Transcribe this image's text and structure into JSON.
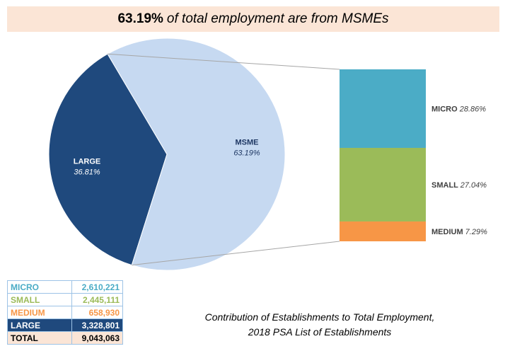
{
  "header": {
    "title_strong": "63.19%",
    "title_rest": "of total employment are from MSMEs"
  },
  "chart_data": {
    "type": "pie",
    "pie": {
      "slices": [
        {
          "name": "LARGE",
          "value": 36.81,
          "value_label": "36.81%",
          "color": "#1f497d",
          "label_color": "#ffffff"
        },
        {
          "name": "MSME",
          "value": 63.19,
          "value_label": "63.19%",
          "color": "#c6d9f1",
          "label_color": "#1f3864"
        }
      ]
    },
    "breakdown": {
      "type": "stacked-bar",
      "parent": "MSME",
      "segments": [
        {
          "name": "MICRO",
          "value": 28.86,
          "value_label": "28.86%",
          "color": "#4bacc6"
        },
        {
          "name": "SMALL",
          "value": 27.04,
          "value_label": "27.04%",
          "color": "#9bbb59"
        },
        {
          "name": "MEDIUM",
          "value": 7.29,
          "value_label": "7.29%",
          "color": "#f79646"
        }
      ]
    }
  },
  "summary_table": {
    "rows": [
      {
        "label": "MICRO",
        "value": "2,610,221",
        "color": "#4bacc6",
        "bg": "#ffffff"
      },
      {
        "label": "SMALL",
        "value": "2,445,111",
        "color": "#9bbb59",
        "bg": "#ffffff"
      },
      {
        "label": "MEDIUM",
        "value": "658,930",
        "color": "#f79646",
        "bg": "#ffffff"
      },
      {
        "label": "LARGE",
        "value": "3,328,801",
        "color": "#ffffff",
        "bg": "#1f497d"
      },
      {
        "label": "TOTAL",
        "value": "9,043,063",
        "color": "#000000",
        "bg": "#fbe5d6"
      }
    ]
  },
  "caption": {
    "line1": "Contribution of Establishments to Total Employment,",
    "line2": "2018 PSA List of Establishments"
  }
}
